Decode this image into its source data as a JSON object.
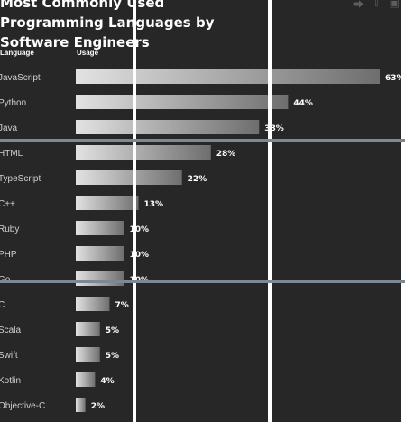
{
  "chart_data": {
    "type": "bar",
    "orientation": "horizontal",
    "title": "Most Commonly Used Programming Languages by Software Engineers",
    "column_headers": {
      "category": "Language",
      "value": "Usage"
    },
    "categories": [
      "JavaScript",
      "Python",
      "Java",
      "HTML",
      "TypeScript",
      "C++",
      "Ruby",
      "PHP",
      "Go",
      "C",
      "Scala",
      "Swift",
      "Kotlin",
      "Objective-C"
    ],
    "values": [
      63,
      44,
      38,
      28,
      22,
      13,
      10,
      10,
      10,
      7,
      5,
      5,
      4,
      2
    ],
    "value_suffix": "%",
    "xlim": [
      0,
      63
    ],
    "grid": false,
    "colors": {
      "background": "#272727",
      "bar_light": "#e2e2e2",
      "bar_dark": "#6e6e6e",
      "label": "#cfcfcf",
      "value_label": "#ffffff"
    }
  },
  "icons": [
    "share-icon",
    "twitter-icon",
    "linkedin-icon"
  ],
  "overlay_colors": {
    "vertical": "#ffffff",
    "horizontal": "#7d8893"
  }
}
